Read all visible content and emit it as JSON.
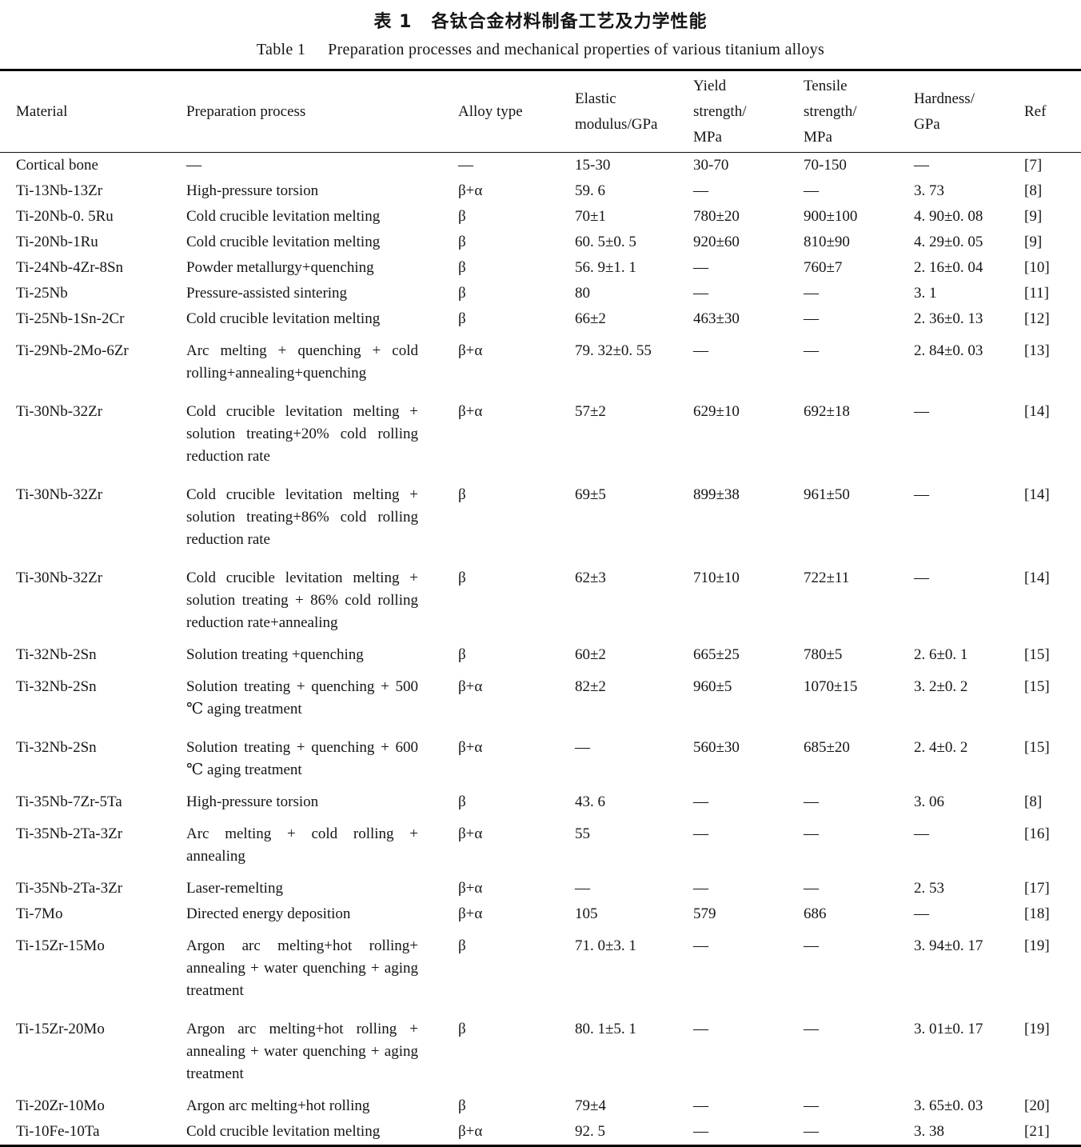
{
  "table": {
    "title_cn_label": "表 1",
    "title_cn_text": "各钛合金材料制备工艺及力学性能",
    "title_en_label": "Table 1",
    "title_en_text": "Preparation processes and mechanical properties of various titanium alloys",
    "columns": [
      {
        "key": "material",
        "lines": [
          "Material"
        ]
      },
      {
        "key": "process",
        "lines": [
          "Preparation process"
        ]
      },
      {
        "key": "alloy",
        "lines": [
          "Alloy type"
        ]
      },
      {
        "key": "elastic",
        "lines": [
          "Elastic",
          "modulus/GPa"
        ]
      },
      {
        "key": "yield",
        "lines": [
          "Yield",
          "strength/",
          "MPa"
        ]
      },
      {
        "key": "tensile",
        "lines": [
          "Tensile",
          "strength/",
          "MPa"
        ]
      },
      {
        "key": "hardness",
        "lines": [
          "Hardness/",
          "GPa"
        ]
      },
      {
        "key": "ref",
        "lines": [
          "Ref"
        ]
      }
    ],
    "rows": [
      {
        "material": "Cortical bone",
        "process": "—",
        "alloy": "—",
        "elastic": "15-30",
        "yield": "30-70",
        "tensile": "70-150",
        "hardness": "—",
        "ref": "[7]"
      },
      {
        "material": "Ti-13Nb-13Zr",
        "process": "High-pressure torsion",
        "alloy": "β+α",
        "elastic": "59. 6",
        "yield": "—",
        "tensile": "—",
        "hardness": "3. 73",
        "ref": "[8]"
      },
      {
        "material": "Ti-20Nb-0. 5Ru",
        "process": "Cold crucible levitation melting",
        "alloy": "β",
        "elastic": "70±1",
        "yield": "780±20",
        "tensile": "900±100",
        "hardness": "4. 90±0. 08",
        "ref": "[9]"
      },
      {
        "material": "Ti-20Nb-1Ru",
        "process": "Cold crucible levitation melting",
        "alloy": "β",
        "elastic": "60. 5±0. 5",
        "yield": "920±60",
        "tensile": "810±90",
        "hardness": "4. 29±0. 05",
        "ref": "[9]"
      },
      {
        "material": "Ti-24Nb-4Zr-8Sn",
        "process": "Powder metallurgy+quenching",
        "alloy": "β",
        "elastic": "56. 9±1. 1",
        "yield": "—",
        "tensile": "760±7",
        "hardness": "2. 16±0. 04",
        "ref": "[10]"
      },
      {
        "material": "Ti-25Nb",
        "process": "Pressure-assisted sintering",
        "alloy": "β",
        "elastic": "80",
        "yield": "—",
        "tensile": "—",
        "hardness": "3. 1",
        "ref": "[11]"
      },
      {
        "material": "Ti-25Nb-1Sn-2Cr",
        "process": "Cold crucible levitation melting",
        "alloy": "β",
        "elastic": "66±2",
        "yield": "463±30",
        "tensile": "—",
        "hardness": "2. 36±0. 13",
        "ref": "[12]"
      },
      {
        "material": "Ti-29Nb-2Mo-6Zr",
        "process": "Arc melting + quenching + cold rolling+annealing+quenching",
        "alloy": "β+α",
        "elastic": "79. 32±0. 55",
        "yield": "—",
        "tensile": "—",
        "hardness": "2. 84±0. 03",
        "ref": "[13]"
      },
      {
        "material": "Ti-30Nb-32Zr",
        "process": "Cold crucible levitation melting + solution treating+20% cold rolling reduction rate",
        "alloy": "β+α",
        "elastic": "57±2",
        "yield": "629±10",
        "tensile": "692±18",
        "hardness": "—",
        "ref": "[14]"
      },
      {
        "material": "Ti-30Nb-32Zr",
        "process": "Cold crucible levitation melting + solution treating+86% cold rolling reduction rate",
        "alloy": "β",
        "elastic": "69±5",
        "yield": "899±38",
        "tensile": "961±50",
        "hardness": "—",
        "ref": "[14]"
      },
      {
        "material": "Ti-30Nb-32Zr",
        "process": "Cold crucible levitation melting + solution treating + 86% cold rolling reduction rate+annealing",
        "alloy": "β",
        "elastic": "62±3",
        "yield": "710±10",
        "tensile": "722±11",
        "hardness": "—",
        "ref": "[14]"
      },
      {
        "material": "Ti-32Nb-2Sn",
        "process": "Solution treating +quenching",
        "alloy": "β",
        "elastic": "60±2",
        "yield": "665±25",
        "tensile": "780±5",
        "hardness": "2. 6±0. 1",
        "ref": "[15]"
      },
      {
        "material": "Ti-32Nb-2Sn",
        "process": "Solution treating + quenching + 500 ℃ aging treatment",
        "alloy": "β+α",
        "elastic": "82±2",
        "yield": "960±5",
        "tensile": "1070±15",
        "hardness": "3. 2±0. 2",
        "ref": "[15]"
      },
      {
        "material": "Ti-32Nb-2Sn",
        "process": "Solution treating + quenching + 600 ℃ aging treatment",
        "alloy": "β+α",
        "elastic": "—",
        "yield": "560±30",
        "tensile": "685±20",
        "hardness": "2. 4±0. 2",
        "ref": "[15]"
      },
      {
        "material": "Ti-35Nb-7Zr-5Ta",
        "process": "High-pressure torsion",
        "alloy": "β",
        "elastic": "43. 6",
        "yield": "—",
        "tensile": "—",
        "hardness": "3. 06",
        "ref": "[8]"
      },
      {
        "material": "Ti-35Nb-2Ta-3Zr",
        "process": "Arc melting + cold rolling + annealing",
        "alloy": "β+α",
        "elastic": "55",
        "yield": "—",
        "tensile": "—",
        "hardness": "—",
        "ref": "[16]"
      },
      {
        "material": "Ti-35Nb-2Ta-3Zr",
        "process": "Laser-remelting",
        "alloy": "β+α",
        "elastic": "—",
        "yield": "—",
        "tensile": "—",
        "hardness": "2. 53",
        "ref": "[17]"
      },
      {
        "material": "Ti-7Mo",
        "process": "Directed energy deposition",
        "alloy": "β+α",
        "elastic": "105",
        "yield": "579",
        "tensile": "686",
        "hardness": "—",
        "ref": "[18]"
      },
      {
        "material": "Ti-15Zr-15Mo",
        "process": "Argon arc melting+hot rolling+ annealing + water quenching + aging treatment",
        "alloy": "β",
        "elastic": "71. 0±3. 1",
        "yield": "—",
        "tensile": "—",
        "hardness": "3. 94±0. 17",
        "ref": "[19]"
      },
      {
        "material": "Ti-15Zr-20Mo",
        "process": "Argon arc melting+hot rolling + annealing + water quenching + aging treatment",
        "alloy": "β",
        "elastic": "80. 1±5. 1",
        "yield": "—",
        "tensile": "—",
        "hardness": "3. 01±0. 17",
        "ref": "[19]"
      },
      {
        "material": "Ti-20Zr-10Mo",
        "process": "Argon arc melting+hot rolling",
        "alloy": "β",
        "elastic": "79±4",
        "yield": "—",
        "tensile": "—",
        "hardness": "3. 65±0. 03",
        "ref": "[20]"
      },
      {
        "material": "Ti-10Fe-10Ta",
        "process": "Cold crucible levitation melting",
        "alloy": "β+α",
        "elastic": "92. 5",
        "yield": "—",
        "tensile": "—",
        "hardness": "3. 38",
        "ref": "[21]"
      }
    ]
  }
}
